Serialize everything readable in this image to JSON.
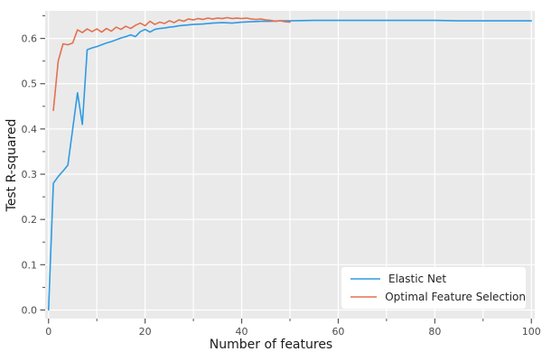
{
  "chart_data": {
    "type": "line",
    "title": "",
    "xlabel": "Number of features",
    "ylabel": "Test R-squared",
    "xlim": [
      -0.7,
      100.7
    ],
    "ylim": [
      -0.019,
      0.661
    ],
    "grid": "on",
    "plot_bg_color": "#EAEAEA",
    "grid_color": "#FFFFFF",
    "tick_color": "#555555",
    "tick_label_color": "#4d4d4d",
    "x_ticks": {
      "values": [
        0,
        20,
        40,
        60,
        80,
        100
      ],
      "labels": [
        "0",
        "20",
        "40",
        "60",
        "80",
        "100"
      ]
    },
    "x_minor_ticks": [
      10,
      30,
      50,
      70,
      90
    ],
    "y_ticks": {
      "values": [
        0.0,
        0.1,
        0.2,
        0.3,
        0.4,
        0.5,
        0.6
      ],
      "labels": [
        "0.0",
        "0.1",
        "0.2",
        "0.3",
        "0.4",
        "0.5",
        "0.6"
      ]
    },
    "y_minor_ticks": [
      0.05,
      0.15,
      0.25,
      0.35,
      0.45,
      0.55,
      0.65
    ],
    "grid_x": [
      0,
      10,
      20,
      30,
      40,
      50,
      60,
      70,
      80,
      90,
      100
    ],
    "grid_y": [
      0.0,
      0.1,
      0.2,
      0.3,
      0.4,
      0.5,
      0.6
    ],
    "legend": {
      "position": "lower right",
      "entries": [
        "Elastic Net",
        "Optimal Feature Selection"
      ]
    },
    "series": [
      {
        "name": "Elastic Net",
        "color": "#2E9BE4",
        "x": [
          0,
          1,
          2,
          3,
          4,
          5,
          6,
          7,
          8,
          9,
          10,
          11,
          12,
          13,
          14,
          15,
          16,
          17,
          18,
          19,
          20,
          21,
          22,
          23,
          24,
          25,
          26,
          27,
          28,
          29,
          30,
          32,
          34,
          36,
          38,
          40,
          42,
          44,
          46,
          48,
          50,
          55,
          60,
          65,
          70,
          75,
          80,
          85,
          90,
          95,
          100
        ],
        "y": [
          0.0,
          0.28,
          0.295,
          0.307,
          0.32,
          0.4,
          0.48,
          0.41,
          0.575,
          0.579,
          0.582,
          0.586,
          0.59,
          0.593,
          0.597,
          0.601,
          0.604,
          0.608,
          0.604,
          0.615,
          0.62,
          0.614,
          0.62,
          0.622,
          0.623,
          0.625,
          0.626,
          0.628,
          0.629,
          0.63,
          0.631,
          0.632,
          0.634,
          0.635,
          0.634,
          0.636,
          0.637,
          0.638,
          0.638,
          0.639,
          0.639,
          0.64,
          0.64,
          0.64,
          0.64,
          0.64,
          0.64,
          0.639,
          0.639,
          0.639,
          0.639
        ]
      },
      {
        "name": "Optimal Feature Selection",
        "color": "#E2714F",
        "x": [
          1,
          2,
          3,
          4,
          5,
          6,
          7,
          8,
          9,
          10,
          11,
          12,
          13,
          14,
          15,
          16,
          17,
          18,
          19,
          20,
          21,
          22,
          23,
          24,
          25,
          26,
          27,
          28,
          29,
          30,
          31,
          32,
          33,
          34,
          35,
          36,
          37,
          38,
          39,
          40,
          41,
          42,
          43,
          44,
          45,
          46,
          47,
          48,
          49,
          50
        ],
        "y": [
          0.441,
          0.55,
          0.588,
          0.586,
          0.59,
          0.619,
          0.613,
          0.621,
          0.615,
          0.621,
          0.614,
          0.622,
          0.616,
          0.625,
          0.62,
          0.627,
          0.622,
          0.629,
          0.634,
          0.628,
          0.638,
          0.631,
          0.636,
          0.633,
          0.639,
          0.635,
          0.641,
          0.638,
          0.643,
          0.641,
          0.644,
          0.642,
          0.645,
          0.643,
          0.645,
          0.644,
          0.646,
          0.644,
          0.645,
          0.644,
          0.645,
          0.643,
          0.642,
          0.643,
          0.641,
          0.64,
          0.638,
          0.639,
          0.637,
          0.636
        ]
      }
    ]
  }
}
